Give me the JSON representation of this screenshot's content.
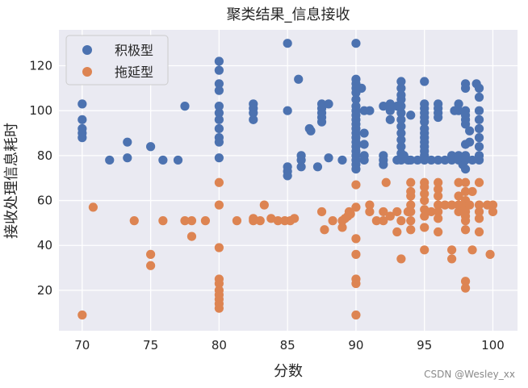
{
  "chart_data": {
    "type": "scatter",
    "title": "聚类结果_信息接收",
    "xlabel": "分数",
    "ylabel": "接收处理信息耗时",
    "xlim": [
      68.3,
      101.8
    ],
    "ylim": [
      2,
      136
    ],
    "xticks": [
      70,
      75,
      80,
      85,
      90,
      95,
      100
    ],
    "yticks": [
      20,
      40,
      60,
      80,
      100,
      120
    ],
    "grid": true,
    "background": "#EAEAF2",
    "legend_position": "top-left",
    "series": [
      {
        "name": "积极型",
        "color": "#4C72B0",
        "points": [
          [
            70,
            103
          ],
          [
            70,
            96
          ],
          [
            70,
            92
          ],
          [
            70,
            90
          ],
          [
            70,
            88
          ],
          [
            72,
            78
          ],
          [
            73.3,
            86
          ],
          [
            73.3,
            79
          ],
          [
            75,
            84
          ],
          [
            75.9,
            78
          ],
          [
            77,
            78
          ],
          [
            77.5,
            102
          ],
          [
            80,
            122
          ],
          [
            80,
            118
          ],
          [
            80,
            112
          ],
          [
            80,
            109
          ],
          [
            80,
            102
          ],
          [
            80,
            99
          ],
          [
            80,
            96
          ],
          [
            80,
            92
          ],
          [
            80,
            88
          ],
          [
            80,
            86
          ],
          [
            80,
            79
          ],
          [
            82.5,
            103
          ],
          [
            82.5,
            101
          ],
          [
            82.5,
            99
          ],
          [
            82.5,
            96
          ],
          [
            85,
            130
          ],
          [
            85,
            100
          ],
          [
            85,
            75
          ],
          [
            85,
            73
          ],
          [
            85,
            71
          ],
          [
            85.8,
            114
          ],
          [
            86,
            80
          ],
          [
            86,
            78
          ],
          [
            86,
            75
          ],
          [
            86.6,
            92
          ],
          [
            86.7,
            91
          ],
          [
            87.2,
            75
          ],
          [
            87.5,
            103
          ],
          [
            87.5,
            101
          ],
          [
            87.5,
            99
          ],
          [
            87.5,
            97
          ],
          [
            87.5,
            95
          ],
          [
            88,
            103
          ],
          [
            88,
            79
          ],
          [
            89,
            78
          ],
          [
            90,
            130
          ],
          [
            90,
            114
          ],
          [
            90,
            112
          ],
          [
            90,
            110
          ],
          [
            90,
            108
          ],
          [
            90,
            105
          ],
          [
            90,
            102
          ],
          [
            90,
            100
          ],
          [
            90,
            98
          ],
          [
            90,
            96
          ],
          [
            90,
            94
          ],
          [
            90,
            92
          ],
          [
            90,
            90
          ],
          [
            90,
            88
          ],
          [
            90,
            86
          ],
          [
            90,
            84
          ],
          [
            90,
            82
          ],
          [
            90,
            80
          ],
          [
            90,
            78
          ],
          [
            90,
            76
          ],
          [
            90,
            74
          ],
          [
            90.4,
            110
          ],
          [
            90.6,
            100
          ],
          [
            90.6,
            90
          ],
          [
            90.6,
            85
          ],
          [
            90.6,
            80
          ],
          [
            90.6,
            78
          ],
          [
            91,
            100
          ],
          [
            92,
            102
          ],
          [
            92,
            80
          ],
          [
            92,
            78
          ],
          [
            92,
            76
          ],
          [
            92.5,
            103
          ],
          [
            92.5,
            100
          ],
          [
            92.5,
            96
          ],
          [
            93,
            102
          ],
          [
            93,
            78
          ],
          [
            93.3,
            113
          ],
          [
            93.3,
            110
          ],
          [
            93.3,
            107
          ],
          [
            93.3,
            105
          ],
          [
            93.3,
            102
          ],
          [
            93.3,
            99
          ],
          [
            93.3,
            96
          ],
          [
            93.3,
            93
          ],
          [
            93.3,
            90
          ],
          [
            93.3,
            87
          ],
          [
            93.3,
            84
          ],
          [
            93.3,
            81
          ],
          [
            93.3,
            78
          ],
          [
            93.5,
            80
          ],
          [
            93.8,
            78
          ],
          [
            94,
            98
          ],
          [
            94,
            78
          ],
          [
            94.5,
            78
          ],
          [
            95,
            113
          ],
          [
            95,
            103
          ],
          [
            95,
            101
          ],
          [
            95,
            99
          ],
          [
            95,
            97
          ],
          [
            95,
            95
          ],
          [
            95,
            92
          ],
          [
            95,
            90
          ],
          [
            95,
            88
          ],
          [
            95,
            86
          ],
          [
            95,
            84
          ],
          [
            95,
            82
          ],
          [
            95,
            80
          ],
          [
            95,
            78
          ],
          [
            95.5,
            78
          ],
          [
            96,
            103
          ],
          [
            96,
            101
          ],
          [
            96,
            99
          ],
          [
            96,
            97
          ],
          [
            96,
            78
          ],
          [
            96.5,
            78
          ],
          [
            97,
            80
          ],
          [
            97,
            78
          ],
          [
            97.2,
            100
          ],
          [
            97.5,
            103
          ],
          [
            97.5,
            100
          ],
          [
            97.5,
            80
          ],
          [
            97.5,
            78
          ],
          [
            97.8,
            76
          ],
          [
            98,
            74
          ],
          [
            98,
            112
          ],
          [
            98,
            110
          ],
          [
            98,
            100
          ],
          [
            98,
            98
          ],
          [
            98,
            96
          ],
          [
            98,
            94
          ],
          [
            98,
            85
          ],
          [
            98,
            80
          ],
          [
            98,
            78
          ],
          [
            98.3,
            91
          ],
          [
            98.3,
            86
          ],
          [
            98.5,
            78
          ],
          [
            98.8,
            112
          ],
          [
            99,
            110
          ],
          [
            99,
            106
          ],
          [
            99,
            100
          ],
          [
            99,
            96
          ],
          [
            99,
            92
          ],
          [
            99,
            88
          ],
          [
            99,
            84
          ],
          [
            99,
            80
          ],
          [
            99,
            78
          ]
        ]
      },
      {
        "name": "拖延型",
        "color": "#DD8452",
        "points": [
          [
            70,
            9
          ],
          [
            70.8,
            57
          ],
          [
            73.8,
            51
          ],
          [
            75,
            36
          ],
          [
            75,
            31
          ],
          [
            75.9,
            51
          ],
          [
            77.5,
            51
          ],
          [
            78,
            51
          ],
          [
            78,
            44
          ],
          [
            79,
            51
          ],
          [
            80,
            68
          ],
          [
            80,
            58
          ],
          [
            80,
            39
          ],
          [
            80,
            25
          ],
          [
            80,
            23
          ],
          [
            80,
            20
          ],
          [
            80,
            18
          ],
          [
            80,
            16
          ],
          [
            80,
            14
          ],
          [
            80,
            12
          ],
          [
            81.3,
            51
          ],
          [
            82.5,
            52
          ],
          [
            82.5,
            51
          ],
          [
            83,
            51
          ],
          [
            83.3,
            58
          ],
          [
            83.8,
            52
          ],
          [
            84.3,
            51
          ],
          [
            84.8,
            51
          ],
          [
            85.2,
            51
          ],
          [
            85.5,
            52
          ],
          [
            87.5,
            55
          ],
          [
            87.7,
            47
          ],
          [
            88.3,
            51
          ],
          [
            89,
            48
          ],
          [
            89,
            51
          ],
          [
            89.2,
            52
          ],
          [
            89.4,
            53
          ],
          [
            89.5,
            55
          ],
          [
            89.6,
            54
          ],
          [
            90,
            67
          ],
          [
            90,
            57
          ],
          [
            90,
            43
          ],
          [
            90,
            36
          ],
          [
            90,
            25
          ],
          [
            90,
            23
          ],
          [
            90,
            9
          ],
          [
            91,
            58
          ],
          [
            91,
            55
          ],
          [
            91.5,
            51
          ],
          [
            92,
            55
          ],
          [
            92,
            51
          ],
          [
            92.2,
            68
          ],
          [
            92.5,
            53
          ],
          [
            93,
            55
          ],
          [
            93,
            46
          ],
          [
            93.3,
            51
          ],
          [
            93.3,
            34
          ],
          [
            93.8,
            55
          ],
          [
            94,
            68
          ],
          [
            94,
            64
          ],
          [
            94,
            62
          ],
          [
            94,
            58
          ],
          [
            94,
            55
          ],
          [
            94,
            51
          ],
          [
            94,
            47
          ],
          [
            95,
            68
          ],
          [
            95,
            66
          ],
          [
            95,
            63
          ],
          [
            95,
            60
          ],
          [
            95,
            56
          ],
          [
            95,
            53
          ],
          [
            95,
            48
          ],
          [
            95,
            38
          ],
          [
            95.5,
            55
          ],
          [
            96,
            68
          ],
          [
            96,
            65
          ],
          [
            96,
            62
          ],
          [
            96,
            58
          ],
          [
            96,
            55
          ],
          [
            96,
            52
          ],
          [
            96,
            46
          ],
          [
            96.5,
            58
          ],
          [
            97,
            58
          ],
          [
            97,
            38
          ],
          [
            97,
            34
          ],
          [
            97.5,
            68
          ],
          [
            97.5,
            62
          ],
          [
            97.5,
            58
          ],
          [
            97.5,
            55
          ],
          [
            98,
            68
          ],
          [
            98,
            64
          ],
          [
            98,
            60
          ],
          [
            98,
            57
          ],
          [
            98,
            55
          ],
          [
            98,
            53
          ],
          [
            98,
            51
          ],
          [
            98,
            47
          ],
          [
            98,
            24
          ],
          [
            98,
            21
          ],
          [
            98.3,
            58
          ],
          [
            98.5,
            64
          ],
          [
            98.5,
            38
          ],
          [
            99,
            58
          ],
          [
            99,
            55
          ],
          [
            99,
            52
          ],
          [
            99,
            46
          ],
          [
            99,
            68
          ],
          [
            99.6,
            58
          ],
          [
            99.8,
            36
          ],
          [
            100,
            58
          ],
          [
            100,
            55
          ]
        ]
      }
    ]
  },
  "watermark": "CSDN @Wesley_xx"
}
